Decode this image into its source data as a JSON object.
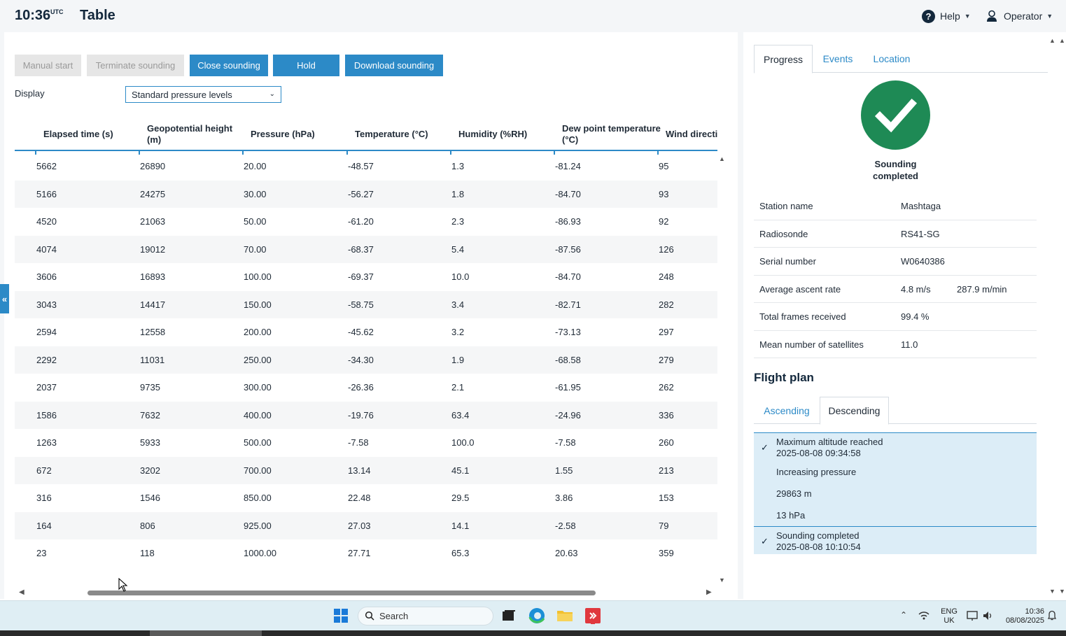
{
  "header": {
    "time": "10:36",
    "timezone": "UTC",
    "title": "Table",
    "help_label": "Help",
    "user_label": "Operator"
  },
  "toolbar": {
    "manual_start": "Manual start",
    "terminate_sounding": "Terminate sounding",
    "close_sounding": "Close sounding",
    "hold": "Hold",
    "download_sounding": "Download sounding"
  },
  "display": {
    "label": "Display",
    "selected": "Standard pressure levels"
  },
  "table": {
    "columns": [
      "Elapsed time (s)",
      "Geopotential height (m)",
      "Pressure (hPa)",
      "Temperature (°C)",
      "Humidity (%RH)",
      "Dew point temperature (°C)",
      "Wind directi"
    ],
    "rows": [
      [
        "5662",
        "26890",
        "20.00",
        "-48.57",
        "1.3",
        "-81.24",
        "95"
      ],
      [
        "5166",
        "24275",
        "30.00",
        "-56.27",
        "1.8",
        "-84.70",
        "93"
      ],
      [
        "4520",
        "21063",
        "50.00",
        "-61.20",
        "2.3",
        "-86.93",
        "92"
      ],
      [
        "4074",
        "19012",
        "70.00",
        "-68.37",
        "5.4",
        "-87.56",
        "126"
      ],
      [
        "3606",
        "16893",
        "100.00",
        "-69.37",
        "10.0",
        "-84.70",
        "248"
      ],
      [
        "3043",
        "14417",
        "150.00",
        "-58.75",
        "3.4",
        "-82.71",
        "282"
      ],
      [
        "2594",
        "12558",
        "200.00",
        "-45.62",
        "3.2",
        "-73.13",
        "297"
      ],
      [
        "2292",
        "11031",
        "250.00",
        "-34.30",
        "1.9",
        "-68.58",
        "279"
      ],
      [
        "2037",
        "9735",
        "300.00",
        "-26.36",
        "2.1",
        "-61.95",
        "262"
      ],
      [
        "1586",
        "7632",
        "400.00",
        "-19.76",
        "63.4",
        "-24.96",
        "336"
      ],
      [
        "1263",
        "5933",
        "500.00",
        "-7.58",
        "100.0",
        "-7.58",
        "260"
      ],
      [
        "672",
        "3202",
        "700.00",
        "13.14",
        "45.1",
        "1.55",
        "213"
      ],
      [
        "316",
        "1546",
        "850.00",
        "22.48",
        "29.5",
        "3.86",
        "153"
      ],
      [
        "164",
        "806",
        "925.00",
        "27.03",
        "14.1",
        "-2.58",
        "79"
      ],
      [
        "23",
        "118",
        "1000.00",
        "27.71",
        "65.3",
        "20.63",
        "359"
      ]
    ]
  },
  "right_panel": {
    "tabs": [
      "Progress",
      "Events",
      "Location"
    ],
    "status_line1": "Sounding",
    "status_line2": "completed",
    "info": [
      {
        "label": "Station name",
        "value": "Mashtaga",
        "value2": ""
      },
      {
        "label": "Radiosonde",
        "value": "RS41-SG",
        "value2": ""
      },
      {
        "label": "Serial number",
        "value": "W0640386",
        "value2": ""
      },
      {
        "label": "Average ascent rate",
        "value": "4.8 m/s",
        "value2": "287.9 m/min"
      },
      {
        "label": "Total frames received",
        "value": "99.4 %",
        "value2": ""
      },
      {
        "label": "Mean number of satellites",
        "value": "11.0",
        "value2": ""
      }
    ],
    "flight_plan_title": "Flight plan",
    "flight_plan_tabs": [
      "Ascending",
      "Descending"
    ],
    "events": {
      "event1_title": "Maximum altitude reached",
      "event1_time": "2025-08-08 09:34:58",
      "event1_detail1": "Increasing pressure",
      "event1_detail2": "29863 m",
      "event1_detail3": "13 hPa",
      "event2_title": "Sounding completed",
      "event2_time": "2025-08-08 10:10:54"
    }
  },
  "taskbar": {
    "search_placeholder": "Search",
    "lang_line1": "ENG",
    "lang_line2": "UK",
    "clock_time": "10:36",
    "clock_date": "08/08/2025"
  },
  "colors": {
    "accent": "#2c8ac7",
    "success": "#1e8a55",
    "event_bg": "#dcedf7"
  }
}
